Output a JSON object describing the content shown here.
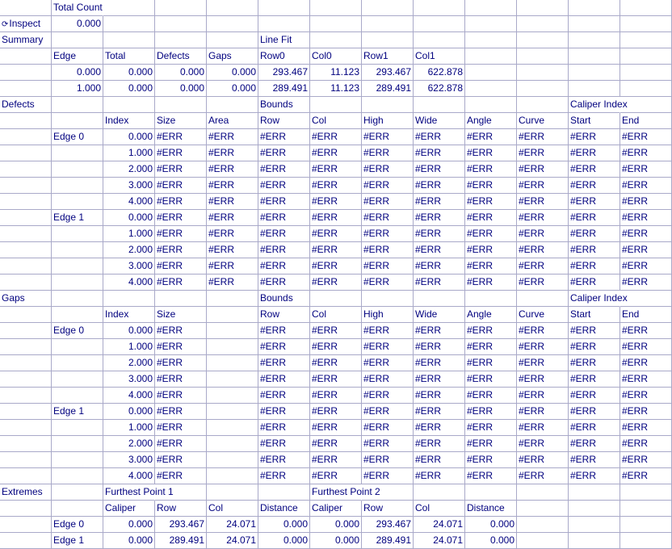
{
  "icon": {
    "inspect": "inspect-cycle-icon",
    "glyph": "⟳"
  },
  "colors": {
    "text": "#00007f",
    "grid": "#a9a9c9"
  },
  "rows": [
    [
      "",
      "Total Count",
      "",
      "",
      "",
      "",
      "",
      "",
      "",
      "",
      "",
      "",
      ""
    ],
    [
      "Inspect",
      "0.000",
      "",
      "",
      "",
      "",
      "",
      "",
      "",
      "",
      "",
      "",
      ""
    ],
    [
      "Summary",
      "",
      "",
      "",
      "",
      "Line Fit",
      "",
      "",
      "",
      "",
      "",
      "",
      ""
    ],
    [
      "",
      "Edge",
      "Total",
      "Defects",
      "Gaps",
      "Row0",
      "Col0",
      "Row1",
      "Col1",
      "",
      "",
      "",
      ""
    ],
    [
      "",
      "0.000",
      "0.000",
      "0.000",
      "0.000",
      "293.467",
      "11.123",
      "293.467",
      "622.878",
      "",
      "",
      "",
      ""
    ],
    [
      "",
      "1.000",
      "0.000",
      "0.000",
      "0.000",
      "289.491",
      "11.123",
      "289.491",
      "622.878",
      "",
      "",
      "",
      ""
    ],
    [
      "Defects",
      "",
      "",
      "",
      "",
      "Bounds",
      "",
      "",
      "",
      "",
      "",
      "Caliper Index",
      ""
    ],
    [
      "",
      "",
      "Index",
      "Size",
      "Area",
      "Row",
      "Col",
      "High",
      "Wide",
      "Angle",
      "Curve",
      "Start",
      "End"
    ],
    [
      "",
      "Edge 0",
      "0.000",
      "#ERR",
      "#ERR",
      "#ERR",
      "#ERR",
      "#ERR",
      "#ERR",
      "#ERR",
      "#ERR",
      "#ERR",
      "#ERR"
    ],
    [
      "",
      "",
      "1.000",
      "#ERR",
      "#ERR",
      "#ERR",
      "#ERR",
      "#ERR",
      "#ERR",
      "#ERR",
      "#ERR",
      "#ERR",
      "#ERR"
    ],
    [
      "",
      "",
      "2.000",
      "#ERR",
      "#ERR",
      "#ERR",
      "#ERR",
      "#ERR",
      "#ERR",
      "#ERR",
      "#ERR",
      "#ERR",
      "#ERR"
    ],
    [
      "",
      "",
      "3.000",
      "#ERR",
      "#ERR",
      "#ERR",
      "#ERR",
      "#ERR",
      "#ERR",
      "#ERR",
      "#ERR",
      "#ERR",
      "#ERR"
    ],
    [
      "",
      "",
      "4.000",
      "#ERR",
      "#ERR",
      "#ERR",
      "#ERR",
      "#ERR",
      "#ERR",
      "#ERR",
      "#ERR",
      "#ERR",
      "#ERR"
    ],
    [
      "",
      "Edge 1",
      "0.000",
      "#ERR",
      "#ERR",
      "#ERR",
      "#ERR",
      "#ERR",
      "#ERR",
      "#ERR",
      "#ERR",
      "#ERR",
      "#ERR"
    ],
    [
      "",
      "",
      "1.000",
      "#ERR",
      "#ERR",
      "#ERR",
      "#ERR",
      "#ERR",
      "#ERR",
      "#ERR",
      "#ERR",
      "#ERR",
      "#ERR"
    ],
    [
      "",
      "",
      "2.000",
      "#ERR",
      "#ERR",
      "#ERR",
      "#ERR",
      "#ERR",
      "#ERR",
      "#ERR",
      "#ERR",
      "#ERR",
      "#ERR"
    ],
    [
      "",
      "",
      "3.000",
      "#ERR",
      "#ERR",
      "#ERR",
      "#ERR",
      "#ERR",
      "#ERR",
      "#ERR",
      "#ERR",
      "#ERR",
      "#ERR"
    ],
    [
      "",
      "",
      "4.000",
      "#ERR",
      "#ERR",
      "#ERR",
      "#ERR",
      "#ERR",
      "#ERR",
      "#ERR",
      "#ERR",
      "#ERR",
      "#ERR"
    ],
    [
      "Gaps",
      "",
      "",
      "",
      "",
      "Bounds",
      "",
      "",
      "",
      "",
      "",
      "Caliper Index",
      ""
    ],
    [
      "",
      "",
      "Index",
      "Size",
      "",
      "Row",
      "Col",
      "High",
      "Wide",
      "Angle",
      "Curve",
      "Start",
      "End"
    ],
    [
      "",
      "Edge 0",
      "0.000",
      "#ERR",
      "",
      "#ERR",
      "#ERR",
      "#ERR",
      "#ERR",
      "#ERR",
      "#ERR",
      "#ERR",
      "#ERR"
    ],
    [
      "",
      "",
      "1.000",
      "#ERR",
      "",
      "#ERR",
      "#ERR",
      "#ERR",
      "#ERR",
      "#ERR",
      "#ERR",
      "#ERR",
      "#ERR"
    ],
    [
      "",
      "",
      "2.000",
      "#ERR",
      "",
      "#ERR",
      "#ERR",
      "#ERR",
      "#ERR",
      "#ERR",
      "#ERR",
      "#ERR",
      "#ERR"
    ],
    [
      "",
      "",
      "3.000",
      "#ERR",
      "",
      "#ERR",
      "#ERR",
      "#ERR",
      "#ERR",
      "#ERR",
      "#ERR",
      "#ERR",
      "#ERR"
    ],
    [
      "",
      "",
      "4.000",
      "#ERR",
      "",
      "#ERR",
      "#ERR",
      "#ERR",
      "#ERR",
      "#ERR",
      "#ERR",
      "#ERR",
      "#ERR"
    ],
    [
      "",
      "Edge 1",
      "0.000",
      "#ERR",
      "",
      "#ERR",
      "#ERR",
      "#ERR",
      "#ERR",
      "#ERR",
      "#ERR",
      "#ERR",
      "#ERR"
    ],
    [
      "",
      "",
      "1.000",
      "#ERR",
      "",
      "#ERR",
      "#ERR",
      "#ERR",
      "#ERR",
      "#ERR",
      "#ERR",
      "#ERR",
      "#ERR"
    ],
    [
      "",
      "",
      "2.000",
      "#ERR",
      "",
      "#ERR",
      "#ERR",
      "#ERR",
      "#ERR",
      "#ERR",
      "#ERR",
      "#ERR",
      "#ERR"
    ],
    [
      "",
      "",
      "3.000",
      "#ERR",
      "",
      "#ERR",
      "#ERR",
      "#ERR",
      "#ERR",
      "#ERR",
      "#ERR",
      "#ERR",
      "#ERR"
    ],
    [
      "",
      "",
      "4.000",
      "#ERR",
      "",
      "#ERR",
      "#ERR",
      "#ERR",
      "#ERR",
      "#ERR",
      "#ERR",
      "#ERR",
      "#ERR"
    ],
    [
      "Extremes",
      "",
      "Furthest Point 1",
      "",
      "",
      "",
      "Furthest Point 2",
      "",
      "",
      "",
      "",
      "",
      ""
    ],
    [
      "",
      "",
      "Caliper",
      "Row",
      "Col",
      "Distance",
      "Caliper",
      "Row",
      "Col",
      "Distance",
      "",
      "",
      ""
    ],
    [
      "",
      "Edge 0",
      "0.000",
      "293.467",
      "24.071",
      "0.000",
      "0.000",
      "293.467",
      "24.071",
      "0.000",
      "",
      "",
      ""
    ],
    [
      "",
      "Edge 1",
      "0.000",
      "289.491",
      "24.071",
      "0.000",
      "0.000",
      "289.491",
      "24.071",
      "0.000",
      "",
      "",
      ""
    ]
  ]
}
